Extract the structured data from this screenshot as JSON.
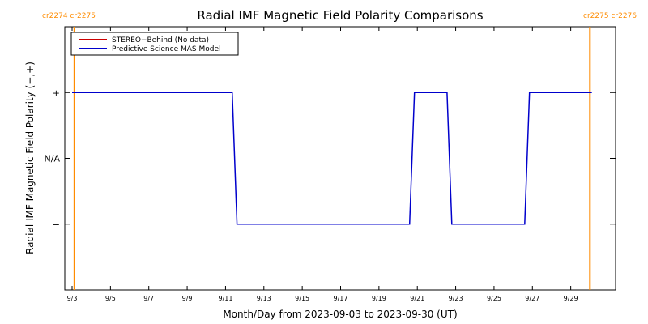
{
  "chart_data": {
    "type": "line",
    "title": "Radial IMF Magnetic Field Polarity Comparisons",
    "xlabel": "Month/Day from 2023-09-03 to 2023-09-30 (UT)",
    "ylabel": "Radial IMF Magnetic Field Polarity (−,+)",
    "x_range_days": [
      0,
      28
    ],
    "x_ticks": [
      {
        "day": 0,
        "label": "9/3"
      },
      {
        "day": 2,
        "label": "9/5"
      },
      {
        "day": 4,
        "label": "9/7"
      },
      {
        "day": 6,
        "label": "9/9"
      },
      {
        "day": 8,
        "label": "9/11"
      },
      {
        "day": 10,
        "label": "9/13"
      },
      {
        "day": 12,
        "label": "9/15"
      },
      {
        "day": 14,
        "label": "9/17"
      },
      {
        "day": 16,
        "label": "9/19"
      },
      {
        "day": 18,
        "label": "9/21"
      },
      {
        "day": 20,
        "label": "9/23"
      },
      {
        "day": 22,
        "label": "9/25"
      },
      {
        "day": 24,
        "label": "9/27"
      },
      {
        "day": 26,
        "label": "9/29"
      }
    ],
    "y_range": [
      -2,
      2
    ],
    "y_ticks": [
      {
        "value": 1,
        "label": "+"
      },
      {
        "value": 0,
        "label": "N/A"
      },
      {
        "value": -1,
        "label": "−"
      }
    ],
    "carrington_markers": [
      {
        "day": 0.12,
        "label": "cr2274 cr2275",
        "side": "left",
        "color": "#ff8c00"
      },
      {
        "day": 27.0,
        "label": "cr2275 cr2276",
        "side": "right",
        "color": "#ff8c00"
      }
    ],
    "legend": {
      "placement": "top-left",
      "entries": [
        {
          "name": "STEREO−Behind (No data)",
          "color": "#cc0000"
        },
        {
          "name": "Predictive Science MAS Model",
          "color": "#0000cc"
        }
      ]
    },
    "series": [
      {
        "name": "Predictive Science MAS Model",
        "color": "#0000cc",
        "x": [
          0,
          8.35,
          8.6,
          17.6,
          17.85,
          19.55,
          19.8,
          23.6,
          23.85,
          27.1
        ],
        "y": [
          1,
          1,
          -1,
          -1,
          1,
          1,
          -1,
          -1,
          1,
          1
        ]
      }
    ]
  }
}
